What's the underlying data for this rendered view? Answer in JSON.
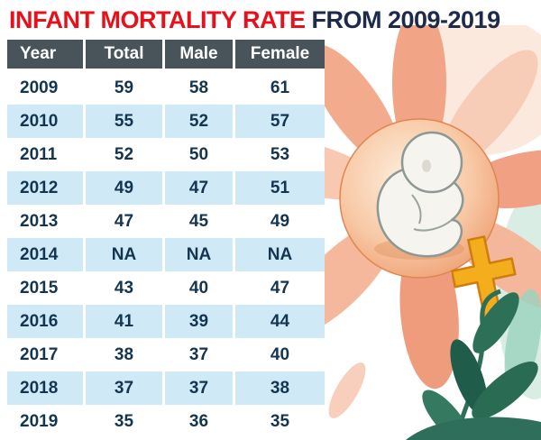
{
  "title": {
    "main": "INFANT MORTALITY RATE",
    "suffix": "FROM 2009-2019"
  },
  "table": {
    "headers": [
      "Year",
      "Total",
      "Male",
      "Female"
    ],
    "rows": [
      [
        "2009",
        "59",
        "58",
        "61"
      ],
      [
        "2010",
        "55",
        "52",
        "57"
      ],
      [
        "2011",
        "52",
        "50",
        "53"
      ],
      [
        "2012",
        "49",
        "47",
        "51"
      ],
      [
        "2013",
        "47",
        "45",
        "49"
      ],
      [
        "2014",
        "NA",
        "NA",
        "NA"
      ],
      [
        "2015",
        "43",
        "40",
        "47"
      ],
      [
        "2016",
        "41",
        "39",
        "44"
      ],
      [
        "2017",
        "38",
        "37",
        "40"
      ],
      [
        "2018",
        "37",
        "37",
        "38"
      ],
      [
        "2019",
        "35",
        "36",
        "35"
      ]
    ]
  },
  "chart_data": {
    "type": "table",
    "title": "INFANT MORTALITY RATE FROM 2009-2019",
    "categories": [
      "2009",
      "2010",
      "2011",
      "2012",
      "2013",
      "2014",
      "2015",
      "2016",
      "2017",
      "2018",
      "2019"
    ],
    "series": [
      {
        "name": "Total",
        "values": [
          59,
          55,
          52,
          49,
          47,
          "NA",
          43,
          41,
          38,
          37,
          35
        ]
      },
      {
        "name": "Male",
        "values": [
          58,
          52,
          50,
          47,
          45,
          "NA",
          40,
          39,
          37,
          37,
          36
        ]
      },
      {
        "name": "Female",
        "values": [
          61,
          57,
          53,
          51,
          49,
          "NA",
          47,
          44,
          40,
          38,
          35
        ]
      }
    ],
    "legend_position": "none",
    "grid": false
  },
  "icons": {
    "illustration": "flower-with-fetus-and-female-symbol"
  },
  "colors": {
    "title_red": "#e8101a",
    "title_navy": "#1e2a49",
    "header_bg": "#485459",
    "header_text": "#ffffff",
    "row_alt_bg": "#cfe9f6",
    "text_dark": "#14354f",
    "flower_petal": "#f2a487",
    "flower_center": "#f8c9a6",
    "female_symbol_yellow": "#f3ad1d",
    "leaf_green": "#2a6b54"
  }
}
